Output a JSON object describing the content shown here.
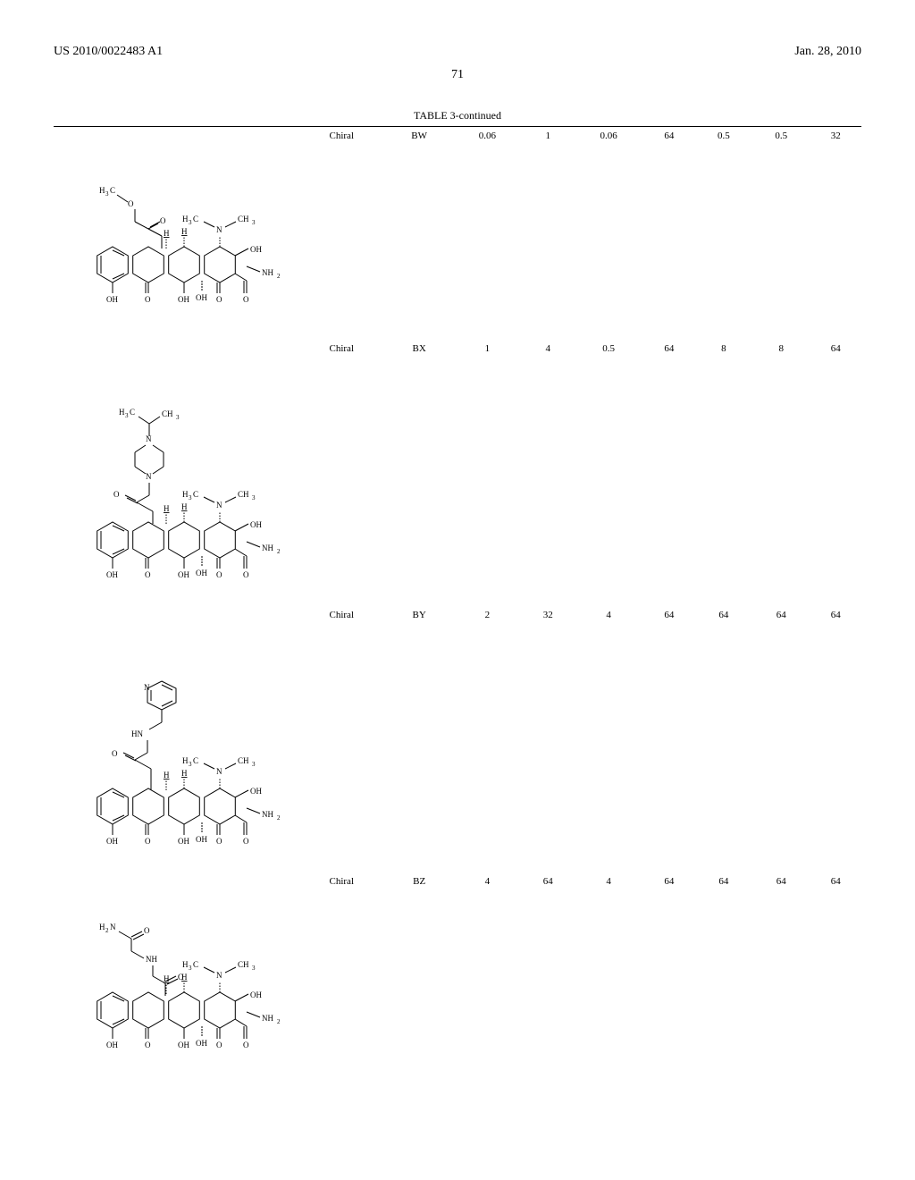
{
  "header": {
    "pub_number": "US 2010/0022483 A1",
    "pub_date": "Jan. 28, 2010",
    "page_num": "71"
  },
  "table": {
    "caption": "TABLE 3-continued",
    "rows": [
      {
        "id": "BW",
        "chiral": "Chiral",
        "c1": "0.06",
        "c2": "1",
        "c3": "0.06",
        "c4": "64",
        "c5": "0.5",
        "c6": "0.5",
        "c7": "32",
        "struct_height": 230,
        "variant": "bw"
      },
      {
        "id": "BX",
        "chiral": "Chiral",
        "c1": "1",
        "c2": "4",
        "c3": "0.5",
        "c4": "64",
        "c5": "8",
        "c6": "8",
        "c7": "64",
        "struct_height": 290,
        "variant": "bx"
      },
      {
        "id": "BY",
        "chiral": "Chiral",
        "c1": "2",
        "c2": "32",
        "c3": "4",
        "c4": "64",
        "c5": "64",
        "c6": "64",
        "c7": "64",
        "struct_height": 290,
        "variant": "by"
      },
      {
        "id": "BZ",
        "chiral": "Chiral",
        "c1": "4",
        "c2": "64",
        "c3": "4",
        "c4": "64",
        "c5": "64",
        "c6": "64",
        "c7": "64",
        "struct_height": 220,
        "variant": "bz"
      }
    ]
  },
  "chem": {
    "stroke": "#000000",
    "text_size": 9
  }
}
